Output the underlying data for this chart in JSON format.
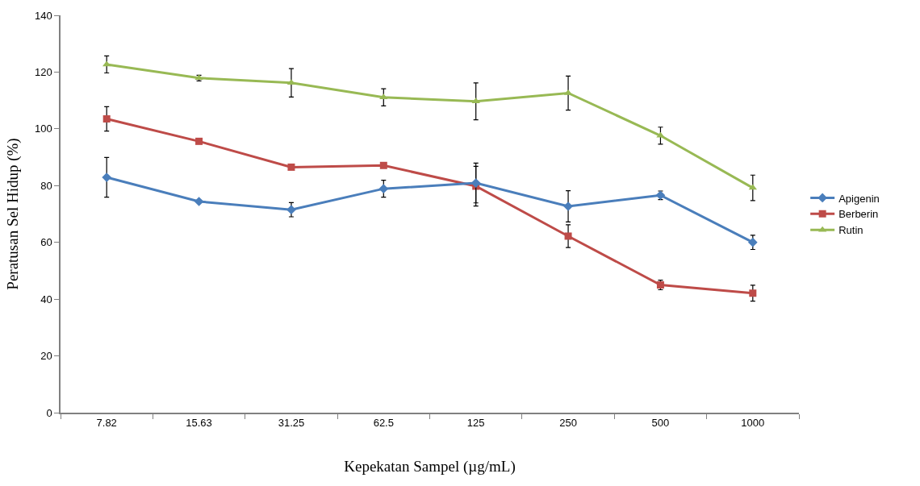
{
  "chart_data": {
    "type": "line",
    "xlabel": "Kepekatan Sampel (µg/mL)",
    "ylabel": "Peratusan Sel Hidup (%)",
    "categories": [
      "7.82",
      "15.63",
      "31.25",
      "62.5",
      "125",
      "250",
      "500",
      "1000"
    ],
    "ylim": [
      0,
      140
    ],
    "yticks": [
      0,
      20,
      40,
      60,
      80,
      100,
      120,
      140
    ],
    "legend": "right",
    "series": [
      {
        "name": "Apigenin",
        "color": "#4a7ebb",
        "marker": "diamond",
        "values": [
          82.9,
          74.4,
          71.5,
          78.9,
          80.9,
          72.7,
          76.6,
          60.0
        ],
        "errors": [
          7,
          null,
          2.5,
          3,
          7,
          5.5,
          1.5,
          2.5
        ]
      },
      {
        "name": "Berberin",
        "color": "#be4b48",
        "marker": "square",
        "values": [
          103.5,
          95.6,
          86.5,
          87.1,
          79.8,
          62.2,
          45.0,
          42.1
        ],
        "errors": [
          4.3,
          null,
          null,
          null,
          7,
          4,
          1.7,
          2.8
        ]
      },
      {
        "name": "Rutin",
        "color": "#98b954",
        "marker": "triangle",
        "values": [
          122.7,
          117.9,
          116.2,
          111.1,
          109.7,
          112.6,
          97.6,
          79.2
        ],
        "errors": [
          3,
          1,
          5,
          3,
          6.5,
          6,
          3,
          4.5
        ]
      }
    ]
  }
}
